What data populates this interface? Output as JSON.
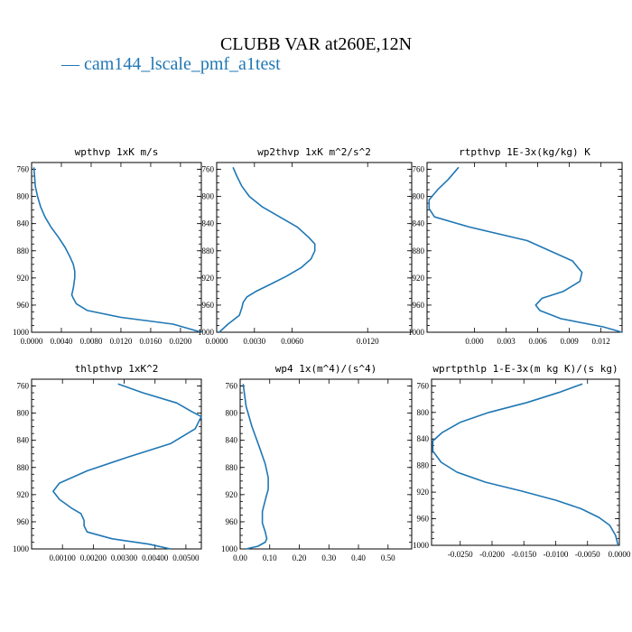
{
  "title": "CLUBB VAR at260E,12N",
  "legend": {
    "label": "— cam144_lscale_pmf_a1test",
    "color": "#1f77b4"
  },
  "series_color": "#1f77b4",
  "chart_data": [
    {
      "type": "line",
      "title": "wpthvp  1xK m/s",
      "xlim": [
        0.0,
        0.0228
      ],
      "ylim": [
        1000,
        750
      ],
      "xticks": [
        0.0,
        0.004,
        0.008,
        0.012,
        0.016,
        0.02
      ],
      "xtick_labels": [
        "0.0000",
        "0.0040",
        "0.0080",
        "0.0120",
        "0.0160",
        "0.0200"
      ],
      "yticks": [
        760,
        800,
        840,
        880,
        920,
        960,
        1000
      ],
      "series": [
        {
          "x": [
            0.0003,
            0.0004,
            0.0005,
            0.0008,
            0.0012,
            0.0018,
            0.0026,
            0.0036,
            0.0045,
            0.0052,
            0.0056,
            0.0058,
            0.0058,
            0.0056,
            0.0054,
            0.0056,
            0.006,
            0.0075,
            0.012,
            0.019,
            0.0228
          ],
          "y": [
            757,
            770,
            785,
            800,
            815,
            830,
            845,
            860,
            875,
            890,
            900,
            910,
            920,
            935,
            945,
            950,
            958,
            968,
            978,
            988,
            1000
          ]
        }
      ]
    },
    {
      "type": "line",
      "title": "wp2thvp  1xK m^2/s^2",
      "xlim": [
        0.0,
        0.0155
      ],
      "ylim": [
        1000,
        750
      ],
      "xticks": [
        0.0,
        0.003,
        0.006,
        0.012
      ],
      "xtick_labels": [
        "0.0000",
        "0.0030",
        "0.0060",
        "0.0120"
      ],
      "yticks": [
        760,
        800,
        840,
        880,
        920,
        960,
        1000
      ],
      "series": [
        {
          "x": [
            0.0013,
            0.0016,
            0.002,
            0.0026,
            0.0036,
            0.005,
            0.0064,
            0.0073,
            0.0078,
            0.0078,
            0.0075,
            0.0067,
            0.0055,
            0.0042,
            0.0031,
            0.0024,
            0.0021,
            0.002,
            0.0018,
            0.0009,
            0.0002
          ],
          "y": [
            757,
            770,
            785,
            800,
            815,
            830,
            845,
            860,
            870,
            880,
            892,
            905,
            918,
            930,
            940,
            948,
            956,
            964,
            975,
            988,
            1000
          ]
        }
      ]
    },
    {
      "type": "line",
      "title": "rtpthvp  1E-3x(kg/kg) K",
      "xlim": [
        -0.0045,
        0.014
      ],
      "ylim": [
        1000,
        750
      ],
      "xticks": [
        0.0,
        0.003,
        0.006,
        0.009,
        0.012
      ],
      "xtick_labels": [
        "0.000",
        "0.003",
        "0.006",
        "0.009",
        "0.012"
      ],
      "yticks": [
        760,
        800,
        840,
        880,
        920,
        960,
        1000
      ],
      "series": [
        {
          "x": [
            -0.0015,
            -0.0025,
            -0.0035,
            -0.0043,
            -0.0043,
            -0.0038,
            -0.0005,
            0.005,
            0.0093,
            0.0102,
            0.01,
            0.0084,
            0.0064,
            0.0058,
            0.0062,
            0.0082,
            0.0122,
            0.014
          ],
          "y": [
            757,
            775,
            790,
            805,
            818,
            830,
            845,
            865,
            895,
            912,
            925,
            940,
            950,
            960,
            968,
            980,
            992,
            1000
          ]
        }
      ]
    },
    {
      "type": "line",
      "title": "thlpthvp  1xK^2",
      "xlim": [
        0.0,
        0.0055
      ],
      "ylim": [
        1000,
        750
      ],
      "xticks": [
        0.001,
        0.002,
        0.003,
        0.004,
        0.005
      ],
      "xtick_labels": [
        "0.00100",
        "0.00200",
        "0.00300",
        "0.00400",
        "0.00500"
      ],
      "yticks": [
        760,
        800,
        840,
        880,
        920,
        960,
        1000
      ],
      "series": [
        {
          "x": [
            0.0028,
            0.0036,
            0.0047,
            0.0052,
            0.0055,
            0.0053,
            0.0045,
            0.0031,
            0.0018,
            0.0009,
            0.0007,
            0.0009,
            0.0013,
            0.0016,
            0.0017,
            0.0017,
            0.0018,
            0.0026,
            0.0038,
            0.0045
          ],
          "y": [
            757,
            770,
            785,
            798,
            805,
            823,
            845,
            865,
            885,
            903,
            915,
            927,
            940,
            948,
            958,
            966,
            975,
            985,
            993,
            1000
          ]
        }
      ]
    },
    {
      "type": "line",
      "title": "wp4  1x(m^4)/(s^4)",
      "xlim": [
        0.0,
        0.58
      ],
      "ylim": [
        1000,
        750
      ],
      "xticks": [
        0.0,
        0.1,
        0.2,
        0.3,
        0.4,
        0.5
      ],
      "xtick_labels": [
        "0.00",
        "0.10",
        "0.20",
        "0.30",
        "0.40",
        "0.50"
      ],
      "yticks": [
        760,
        800,
        840,
        880,
        920,
        960,
        1000
      ],
      "series": [
        {
          "x": [
            0.01,
            0.02,
            0.04,
            0.065,
            0.085,
            0.095,
            0.095,
            0.085,
            0.075,
            0.075,
            0.085,
            0.09,
            0.085,
            0.06,
            0.02
          ],
          "y": [
            757,
            790,
            820,
            850,
            875,
            895,
            912,
            928,
            945,
            962,
            975,
            985,
            990,
            996,
            1000
          ]
        }
      ]
    },
    {
      "type": "line",
      "title": "wprtpthlp  1-E-3x(m kg K)/(s kg)",
      "xlim": [
        -0.0295,
        0.0
      ],
      "ylim": [
        1000,
        750
      ],
      "xticks": [
        -0.025,
        -0.02,
        -0.015,
        -0.01,
        -0.005,
        0.0
      ],
      "xtick_labels": [
        "-0.0250",
        "-0.0200",
        "-0.0150",
        "-0.0100",
        "-0.0050",
        "0.0000"
      ],
      "yticks": [
        760,
        800,
        840,
        880,
        920,
        960,
        1000
      ],
      "series": [
        {
          "x": [
            -0.0058,
            -0.0095,
            -0.0145,
            -0.0205,
            -0.025,
            -0.0278,
            -0.0293,
            -0.0293,
            -0.028,
            -0.0255,
            -0.021,
            -0.0155,
            -0.01,
            -0.006,
            -0.0032,
            -0.0015,
            -0.0006,
            -0.0002
          ],
          "y": [
            757,
            770,
            785,
            800,
            815,
            830,
            843,
            858,
            875,
            890,
            905,
            918,
            932,
            945,
            958,
            970,
            985,
            1000
          ]
        }
      ]
    }
  ]
}
